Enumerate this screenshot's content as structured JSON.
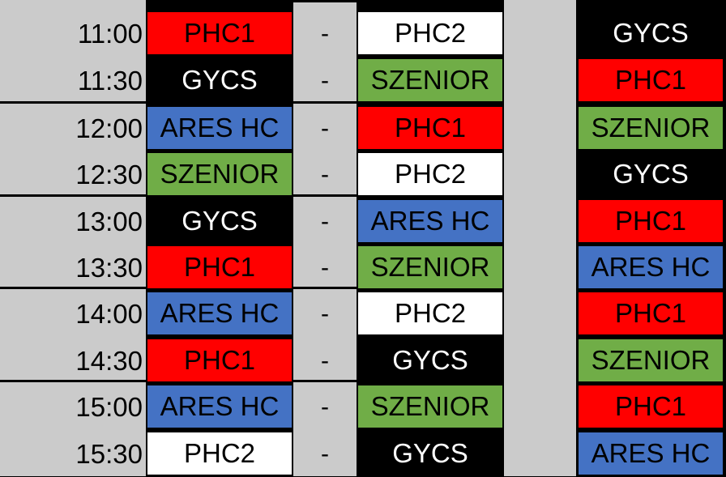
{
  "colors": {
    "red": "#ff0000",
    "white": "#ffffff",
    "black": "#000000",
    "green": "#70ad47",
    "blue": "#4472c4",
    "gray": "#cbcbcb"
  },
  "separator": "-",
  "rows": [
    {
      "time": "11:00",
      "home": "PHC1",
      "home_color": "red",
      "away": "PHC2",
      "away_color": "white",
      "ref": "GYCS",
      "ref_color": "black"
    },
    {
      "time": "11:30",
      "home": "GYCS",
      "home_color": "black",
      "away": "SZENIOR",
      "away_color": "green",
      "ref": "PHC1",
      "ref_color": "red"
    },
    {
      "time": "12:00",
      "home": "ARES HC",
      "home_color": "blue",
      "away": "PHC1",
      "away_color": "red",
      "ref": "SZENIOR",
      "ref_color": "green"
    },
    {
      "time": "12:30",
      "home": "SZENIOR",
      "home_color": "green",
      "away": "PHC2",
      "away_color": "white",
      "ref": "GYCS",
      "ref_color": "black"
    },
    {
      "time": "13:00",
      "home": "GYCS",
      "home_color": "black",
      "away": "ARES HC",
      "away_color": "blue",
      "ref": "PHC1",
      "ref_color": "red"
    },
    {
      "time": "13:30",
      "home": "PHC1",
      "home_color": "red",
      "away": "SZENIOR",
      "away_color": "green",
      "ref": "ARES HC",
      "ref_color": "blue"
    },
    {
      "time": "14:00",
      "home": "ARES HC",
      "home_color": "blue",
      "away": "PHC2",
      "away_color": "white",
      "ref": "PHC1",
      "ref_color": "red"
    },
    {
      "time": "14:30",
      "home": "PHC1",
      "home_color": "red",
      "away": "GYCS",
      "away_color": "black",
      "ref": "SZENIOR",
      "ref_color": "green"
    },
    {
      "time": "15:00",
      "home": "ARES HC",
      "home_color": "blue",
      "away": "SZENIOR",
      "away_color": "green",
      "ref": "PHC1",
      "ref_color": "red"
    },
    {
      "time": "15:30",
      "home": "PHC2",
      "home_color": "white",
      "away": "GYCS",
      "away_color": "black",
      "ref": "ARES HC",
      "ref_color": "blue"
    }
  ]
}
